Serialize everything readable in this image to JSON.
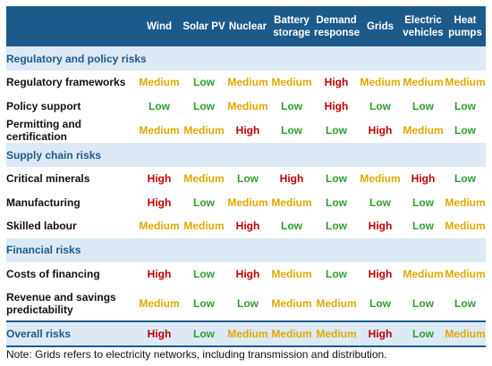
{
  "chart_data": {
    "type": "table",
    "columns": [
      "Wind",
      "Solar PV",
      "Nuclear",
      "Battery storage",
      "Demand response",
      "Grids",
      "Electric vehicles",
      "Heat pumps"
    ],
    "sections": [
      {
        "title": "Regulatory and policy risks",
        "rows": [
          {
            "label": "Regulatory frameworks",
            "values": [
              "Medium",
              "Low",
              "Medium",
              "Medium",
              "High",
              "Medium",
              "Medium",
              "Medium"
            ]
          },
          {
            "label": "Policy support",
            "values": [
              "Low",
              "Low",
              "Medium",
              "Low",
              "High",
              "Low",
              "Low",
              "Low"
            ]
          },
          {
            "label": "Permitting and certification",
            "values": [
              "Medium",
              "Medium",
              "High",
              "Low",
              "Low",
              "High",
              "Medium",
              "Low"
            ]
          }
        ]
      },
      {
        "title": "Supply chain risks",
        "rows": [
          {
            "label": "Critical minerals",
            "values": [
              "High",
              "Medium",
              "Low",
              "High",
              "Low",
              "Medium",
              "High",
              "Low"
            ]
          },
          {
            "label": "Manufacturing",
            "values": [
              "High",
              "Low",
              "Medium",
              "Medium",
              "Low",
              "Low",
              "Low",
              "Medium"
            ]
          },
          {
            "label": "Skilled labour",
            "values": [
              "Medium",
              "Medium",
              "High",
              "Low",
              "Low",
              "High",
              "Low",
              "Medium"
            ]
          }
        ]
      },
      {
        "title": "Financial risks",
        "rows": [
          {
            "label": "Costs of financing",
            "values": [
              "High",
              "Low",
              "High",
              "Medium",
              "Low",
              "High",
              "Medium",
              "Medium"
            ]
          },
          {
            "label": "Revenue and savings predictability",
            "values": [
              "Medium",
              "Low",
              "Low",
              "Medium",
              "Medium",
              "Low",
              "Low",
              "Low"
            ]
          }
        ]
      }
    ],
    "overall": {
      "label": "Overall risks",
      "values": [
        "High",
        "Low",
        "Medium",
        "Medium",
        "Medium",
        "High",
        "Low",
        "Medium"
      ]
    },
    "level_colors": {
      "High": "#c00000",
      "Medium": "#e0a800",
      "Low": "#2e9e2e"
    },
    "header_color": "#1c5a8c",
    "section_color": "#ddeaf5"
  },
  "note": "Note: Grids refers to electricity networks, including transmission and distribution."
}
